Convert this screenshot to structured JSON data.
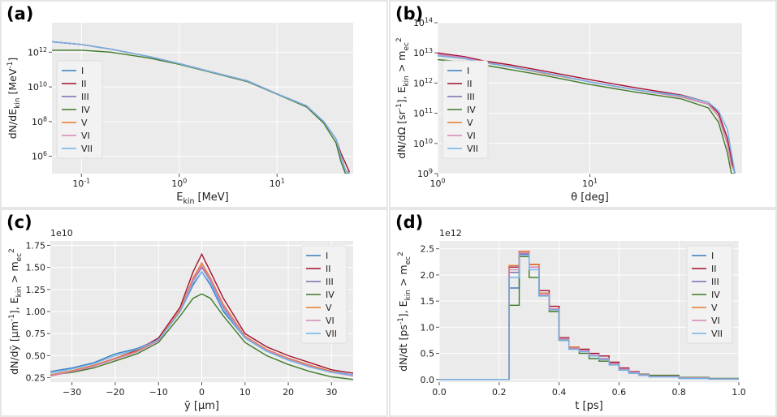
{
  "panels": [
    {
      "label": "(a)"
    },
    {
      "label": "(b)"
    },
    {
      "label": "(c)"
    },
    {
      "label": "(d)"
    }
  ],
  "colors": {
    "plot_bg": "#ebebeb",
    "grid": "#ffffff",
    "I": "#3b7dbb",
    "II": "#a50f2e",
    "III": "#7b6ab0",
    "IV": "#3f7a28",
    "V": "#e8772e",
    "VI": "#d487b8",
    "VII": "#6fb2e8"
  },
  "legend_labels": [
    "I",
    "II",
    "III",
    "IV",
    "V",
    "VI",
    "VII"
  ],
  "chart_data": [
    {
      "type": "line",
      "xlabel": "E_kin [MeV]",
      "ylabel": "dN/dE_kin [MeV^-1]",
      "xscale": "log",
      "yscale": "log",
      "xlim": [
        0.05,
        60
      ],
      "ylim": [
        100000,
        50000000000000.0
      ],
      "xticks": [
        "10^-1",
        "10^0",
        "10^1"
      ],
      "yticks": [
        "10^6",
        "10^8",
        "10^10",
        "10^12"
      ],
      "legend": "center-left",
      "x": [
        0.05,
        0.1,
        0.2,
        0.5,
        1,
        2,
        5,
        10,
        20,
        30,
        40,
        45,
        50,
        55
      ],
      "series": [
        {
          "name": "I",
          "values": [
            4000000000000.0,
            2800000000000.0,
            1500000000000.0,
            550000000000.0,
            220000000000.0,
            80000000000.0,
            22000000000.0,
            4000000000.0,
            800000000.0,
            100000000.0,
            10000000.0,
            1000000.0,
            150000.0,
            100000.0
          ]
        },
        {
          "name": "II",
          "values": [
            4000000000000.0,
            2800000000000.0,
            1500000000000.0,
            550000000000.0,
            220000000000.0,
            80000000000.0,
            22000000000.0,
            4000000000.0,
            800000000.0,
            100000000.0,
            10000000.0,
            1500000.0,
            400000.0,
            120000.0
          ]
        },
        {
          "name": "III",
          "values": [
            4000000000000.0,
            2800000000000.0,
            1500000000000.0,
            550000000000.0,
            220000000000.0,
            80000000000.0,
            22000000000.0,
            4000000000.0,
            800000000.0,
            100000000.0,
            10000000.0,
            1000000.0,
            150000.0,
            100000.0
          ]
        },
        {
          "name": "IV",
          "values": [
            1300000000000.0,
            1300000000000.0,
            1000000000000.0,
            450000000000.0,
            200000000000.0,
            75000000000.0,
            20000000000.0,
            3800000000.0,
            700000000.0,
            80000000.0,
            6000000.0,
            500000.0,
            100000.0,
            100000.0
          ]
        },
        {
          "name": "V",
          "values": [
            4000000000000.0,
            2800000000000.0,
            1500000000000.0,
            550000000000.0,
            220000000000.0,
            80000000000.0,
            22000000000.0,
            4000000000.0,
            800000000.0,
            100000000.0,
            10000000.0,
            1000000.0,
            150000.0,
            100000.0
          ]
        },
        {
          "name": "VI",
          "values": [
            4000000000000.0,
            2800000000000.0,
            1500000000000.0,
            550000000000.0,
            220000000000.0,
            80000000000.0,
            22000000000.0,
            4000000000.0,
            800000000.0,
            100000000.0,
            10000000.0,
            1000000.0,
            150000.0,
            100000.0
          ]
        },
        {
          "name": "VII",
          "values": [
            4000000000000.0,
            2800000000000.0,
            1500000000000.0,
            550000000000.0,
            220000000000.0,
            80000000000.0,
            22000000000.0,
            4000000000.0,
            800000000.0,
            100000000.0,
            10000000.0,
            1000000.0,
            150000.0,
            100000.0
          ]
        }
      ]
    },
    {
      "type": "line",
      "xlabel": "θ [deg]",
      "ylabel": "dN/dΩ [sr^-1], E_kin > m_ec^2",
      "xscale": "log",
      "yscale": "log",
      "xlim": [
        1,
        100
      ],
      "ylim": [
        1000000000.0,
        100000000000000.0
      ],
      "xticks": [
        "10^0",
        "10^1"
      ],
      "yticks": [
        "10^9",
        "10^10",
        "10^11",
        "10^12",
        "10^13",
        "10^14"
      ],
      "legend": "center-left",
      "x": [
        1,
        1.5,
        2,
        3,
        5,
        10,
        20,
        40,
        60,
        70,
        80,
        85,
        90
      ],
      "series": [
        {
          "name": "I",
          "values": [
            9000000000000.0,
            7000000000000.0,
            5000000000000.0,
            3500000000000.0,
            2200000000000.0,
            1100000000000.0,
            600000000000.0,
            350000000000.0,
            200000000000.0,
            80000000000.0,
            10000000000.0,
            2000000000.0,
            1000000000.0
          ]
        },
        {
          "name": "II",
          "values": [
            10000000000000.0,
            7500000000000.0,
            5500000000000.0,
            4000000000000.0,
            2500000000000.0,
            1300000000000.0,
            700000000000.0,
            400000000000.0,
            230000000000.0,
            100000000000.0,
            15000000000.0,
            3000000000.0,
            1000000000.0
          ]
        },
        {
          "name": "III",
          "values": [
            9000000000000.0,
            7000000000000.0,
            5000000000000.0,
            3500000000000.0,
            2200000000000.0,
            1100000000000.0,
            600000000000.0,
            350000000000.0,
            200000000000.0,
            80000000000.0,
            10000000000.0,
            2000000000.0,
            1000000000.0
          ]
        },
        {
          "name": "IV",
          "values": [
            6000000000000.0,
            5000000000000.0,
            4000000000000.0,
            2800000000000.0,
            1800000000000.0,
            900000000000.0,
            500000000000.0,
            300000000000.0,
            150000000000.0,
            50000000000.0,
            5000000000.0,
            1000000000.0,
            1000000000.0
          ]
        },
        {
          "name": "V",
          "values": [
            8000000000000.0,
            6500000000000.0,
            4800000000000.0,
            3400000000000.0,
            2100000000000.0,
            1100000000000.0,
            600000000000.0,
            350000000000.0,
            200000000000.0,
            80000000000.0,
            10000000000.0,
            2000000000.0,
            1000000000.0
          ]
        },
        {
          "name": "VI",
          "values": [
            9000000000000.0,
            7000000000000.0,
            5000000000000.0,
            3500000000000.0,
            2200000000000.0,
            1100000000000.0,
            600000000000.0,
            350000000000.0,
            200000000000.0,
            80000000000.0,
            10000000000.0,
            2000000000.0,
            1000000000.0
          ]
        },
        {
          "name": "VII",
          "values": [
            8000000000000.0,
            6500000000000.0,
            4800000000000.0,
            3400000000000.0,
            2200000000000.0,
            1100000000000.0,
            600000000000.0,
            380000000000.0,
            230000000000.0,
            120000000000.0,
            30000000000.0,
            5000000000.0,
            1000000000.0
          ]
        }
      ]
    },
    {
      "type": "line",
      "xlabel": "ȳ [μm]",
      "ylabel": "dN/dȳ [μm^-1], E_kin > m_ec^2",
      "multiplier": "1e10",
      "xlim": [
        -35,
        35
      ],
      "ylim": [
        0.2,
        1.8
      ],
      "xticks": [
        -30,
        -20,
        -10,
        0,
        10,
        20,
        30
      ],
      "yticks": [
        0.25,
        0.5,
        0.75,
        1.0,
        1.25,
        1.5,
        1.75
      ],
      "legend": "top-right",
      "x": [
        -35,
        -30,
        -25,
        -20,
        -15,
        -10,
        -5,
        -2,
        0,
        2,
        5,
        10,
        15,
        20,
        25,
        30,
        35
      ],
      "series": [
        {
          "name": "I",
          "values": [
            0.32,
            0.36,
            0.42,
            0.52,
            0.58,
            0.68,
            1.0,
            1.3,
            1.45,
            1.3,
            1.0,
            0.7,
            0.55,
            0.45,
            0.38,
            0.32,
            0.28
          ]
        },
        {
          "name": "II",
          "values": [
            0.27,
            0.32,
            0.38,
            0.47,
            0.56,
            0.7,
            1.05,
            1.45,
            1.65,
            1.45,
            1.15,
            0.75,
            0.6,
            0.5,
            0.42,
            0.34,
            0.3
          ]
        },
        {
          "name": "III",
          "values": [
            0.28,
            0.33,
            0.39,
            0.47,
            0.55,
            0.68,
            1.0,
            1.35,
            1.5,
            1.35,
            1.05,
            0.7,
            0.56,
            0.47,
            0.39,
            0.32,
            0.28
          ]
        },
        {
          "name": "IV",
          "values": [
            0.28,
            0.31,
            0.36,
            0.44,
            0.52,
            0.65,
            0.95,
            1.15,
            1.2,
            1.15,
            0.95,
            0.65,
            0.5,
            0.4,
            0.32,
            0.26,
            0.23
          ]
        },
        {
          "name": "V",
          "values": [
            0.28,
            0.33,
            0.39,
            0.47,
            0.55,
            0.68,
            1.02,
            1.38,
            1.55,
            1.38,
            1.08,
            0.72,
            0.57,
            0.47,
            0.39,
            0.32,
            0.27
          ]
        },
        {
          "name": "VI",
          "values": [
            0.27,
            0.32,
            0.38,
            0.46,
            0.54,
            0.67,
            1.0,
            1.36,
            1.52,
            1.36,
            1.06,
            0.71,
            0.56,
            0.46,
            0.38,
            0.31,
            0.27
          ]
        },
        {
          "name": "VII",
          "values": [
            0.3,
            0.35,
            0.41,
            0.5,
            0.57,
            0.68,
            1.0,
            1.32,
            1.45,
            1.32,
            1.02,
            0.7,
            0.55,
            0.45,
            0.37,
            0.31,
            0.28
          ]
        }
      ]
    },
    {
      "type": "line",
      "xlabel": "t [ps]",
      "ylabel": "dN/dt [ps^-1], E_kin > m_ec^2",
      "multiplier": "1e12",
      "xlim": [
        0,
        1.0
      ],
      "ylim": [
        -0.05,
        2.65
      ],
      "xticks": [
        0.0,
        0.2,
        0.4,
        0.6,
        0.8,
        1.0
      ],
      "yticks": [
        0.0,
        0.5,
        1.0,
        1.5,
        2.0,
        2.5
      ],
      "legend": "top-right",
      "step": true,
      "x": [
        0,
        0.233,
        0.267,
        0.3,
        0.333,
        0.367,
        0.4,
        0.433,
        0.467,
        0.5,
        0.533,
        0.567,
        0.6,
        0.633,
        0.667,
        0.7,
        0.8,
        0.9,
        1.0
      ],
      "series": [
        {
          "name": "I",
          "values": [
            0,
            1.75,
            2.4,
            2.15,
            1.6,
            1.35,
            0.75,
            0.6,
            0.55,
            0.45,
            0.4,
            0.3,
            0.2,
            0.14,
            0.1,
            0.07,
            0.03,
            0.01,
            0.01
          ]
        },
        {
          "name": "II",
          "values": [
            0,
            2.15,
            2.45,
            2.2,
            1.7,
            1.4,
            0.8,
            0.62,
            0.58,
            0.5,
            0.45,
            0.33,
            0.22,
            0.15,
            0.1,
            0.07,
            0.03,
            0.01,
            0.01
          ]
        },
        {
          "name": "III",
          "values": [
            0,
            2.05,
            2.4,
            2.15,
            1.65,
            1.35,
            0.75,
            0.6,
            0.55,
            0.45,
            0.38,
            0.28,
            0.18,
            0.12,
            0.08,
            0.06,
            0.02,
            0.01,
            0.01
          ]
        },
        {
          "name": "IV",
          "values": [
            0,
            1.42,
            2.35,
            1.95,
            1.6,
            1.3,
            0.75,
            0.58,
            0.5,
            0.4,
            0.35,
            0.28,
            0.2,
            0.14,
            0.1,
            0.08,
            0.04,
            0.02,
            0.01
          ]
        },
        {
          "name": "V",
          "values": [
            0,
            2.18,
            2.45,
            2.2,
            1.65,
            1.35,
            0.78,
            0.62,
            0.55,
            0.45,
            0.38,
            0.3,
            0.2,
            0.13,
            0.09,
            0.06,
            0.03,
            0.01,
            0.01
          ]
        },
        {
          "name": "VI",
          "values": [
            0,
            2.1,
            2.42,
            2.15,
            1.62,
            1.35,
            0.78,
            0.6,
            0.55,
            0.48,
            0.4,
            0.3,
            0.2,
            0.14,
            0.09,
            0.06,
            0.03,
            0.01,
            0.01
          ]
        },
        {
          "name": "VII",
          "values": [
            0,
            1.95,
            2.38,
            2.1,
            1.6,
            1.33,
            0.75,
            0.58,
            0.53,
            0.45,
            0.38,
            0.28,
            0.18,
            0.12,
            0.08,
            0.05,
            0.02,
            0.01,
            0.01
          ]
        }
      ]
    }
  ]
}
